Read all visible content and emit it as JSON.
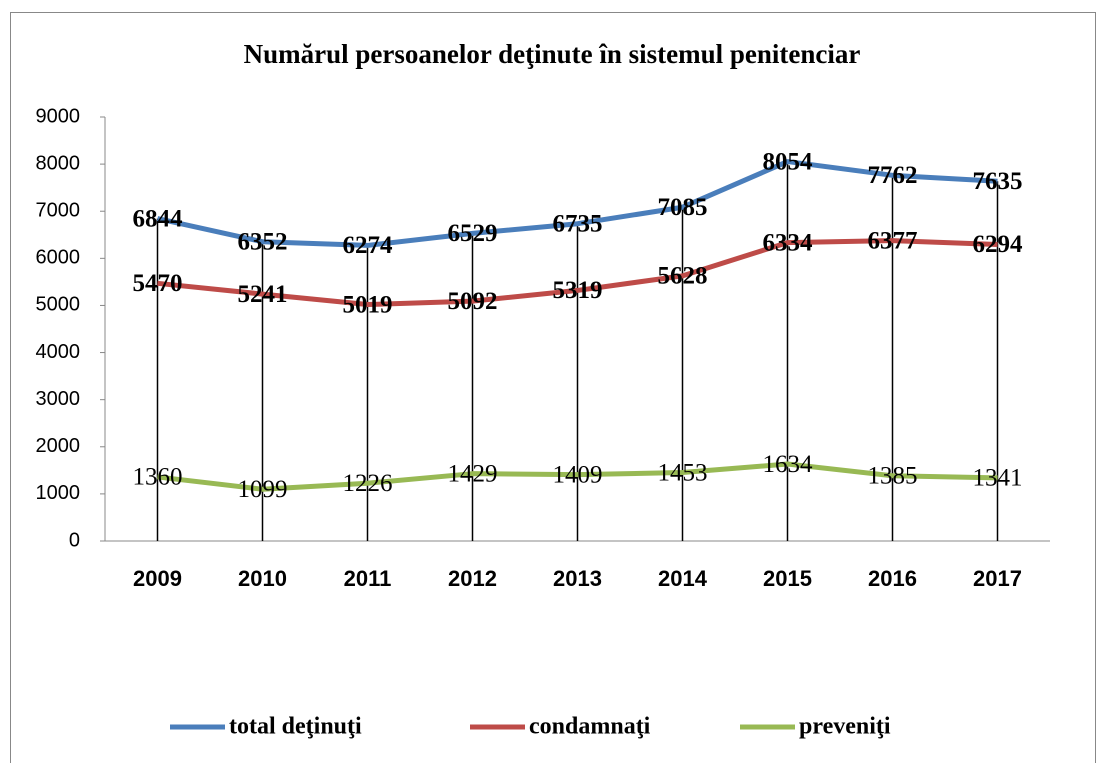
{
  "chart_data": {
    "type": "line",
    "title": "Numărul persoanelor deţinute în sistemul penitenciar",
    "categories": [
      "2009",
      "2010",
      "2011",
      "2012",
      "2013",
      "2014",
      "2015",
      "2016",
      "2017"
    ],
    "series": [
      {
        "name": "total deţinuţi",
        "color": "#4a7ebb",
        "values": [
          6844,
          6352,
          6274,
          6529,
          6735,
          7085,
          8054,
          7762,
          7635
        ]
      },
      {
        "name": "condamnaţi",
        "color": "#be4b48",
        "values": [
          5470,
          5241,
          5019,
          5092,
          5319,
          5628,
          6334,
          6377,
          6294
        ]
      },
      {
        "name": "preveniţi",
        "color": "#98b954",
        "values": [
          1360,
          1099,
          1226,
          1429,
          1409,
          1453,
          1634,
          1385,
          1341
        ]
      }
    ],
    "ylim": [
      0,
      9000
    ],
    "yticks": [
      0,
      1000,
      2000,
      3000,
      4000,
      5000,
      6000,
      7000,
      8000,
      9000
    ],
    "grid": false,
    "legend": "bottom",
    "drop_lines": true
  }
}
